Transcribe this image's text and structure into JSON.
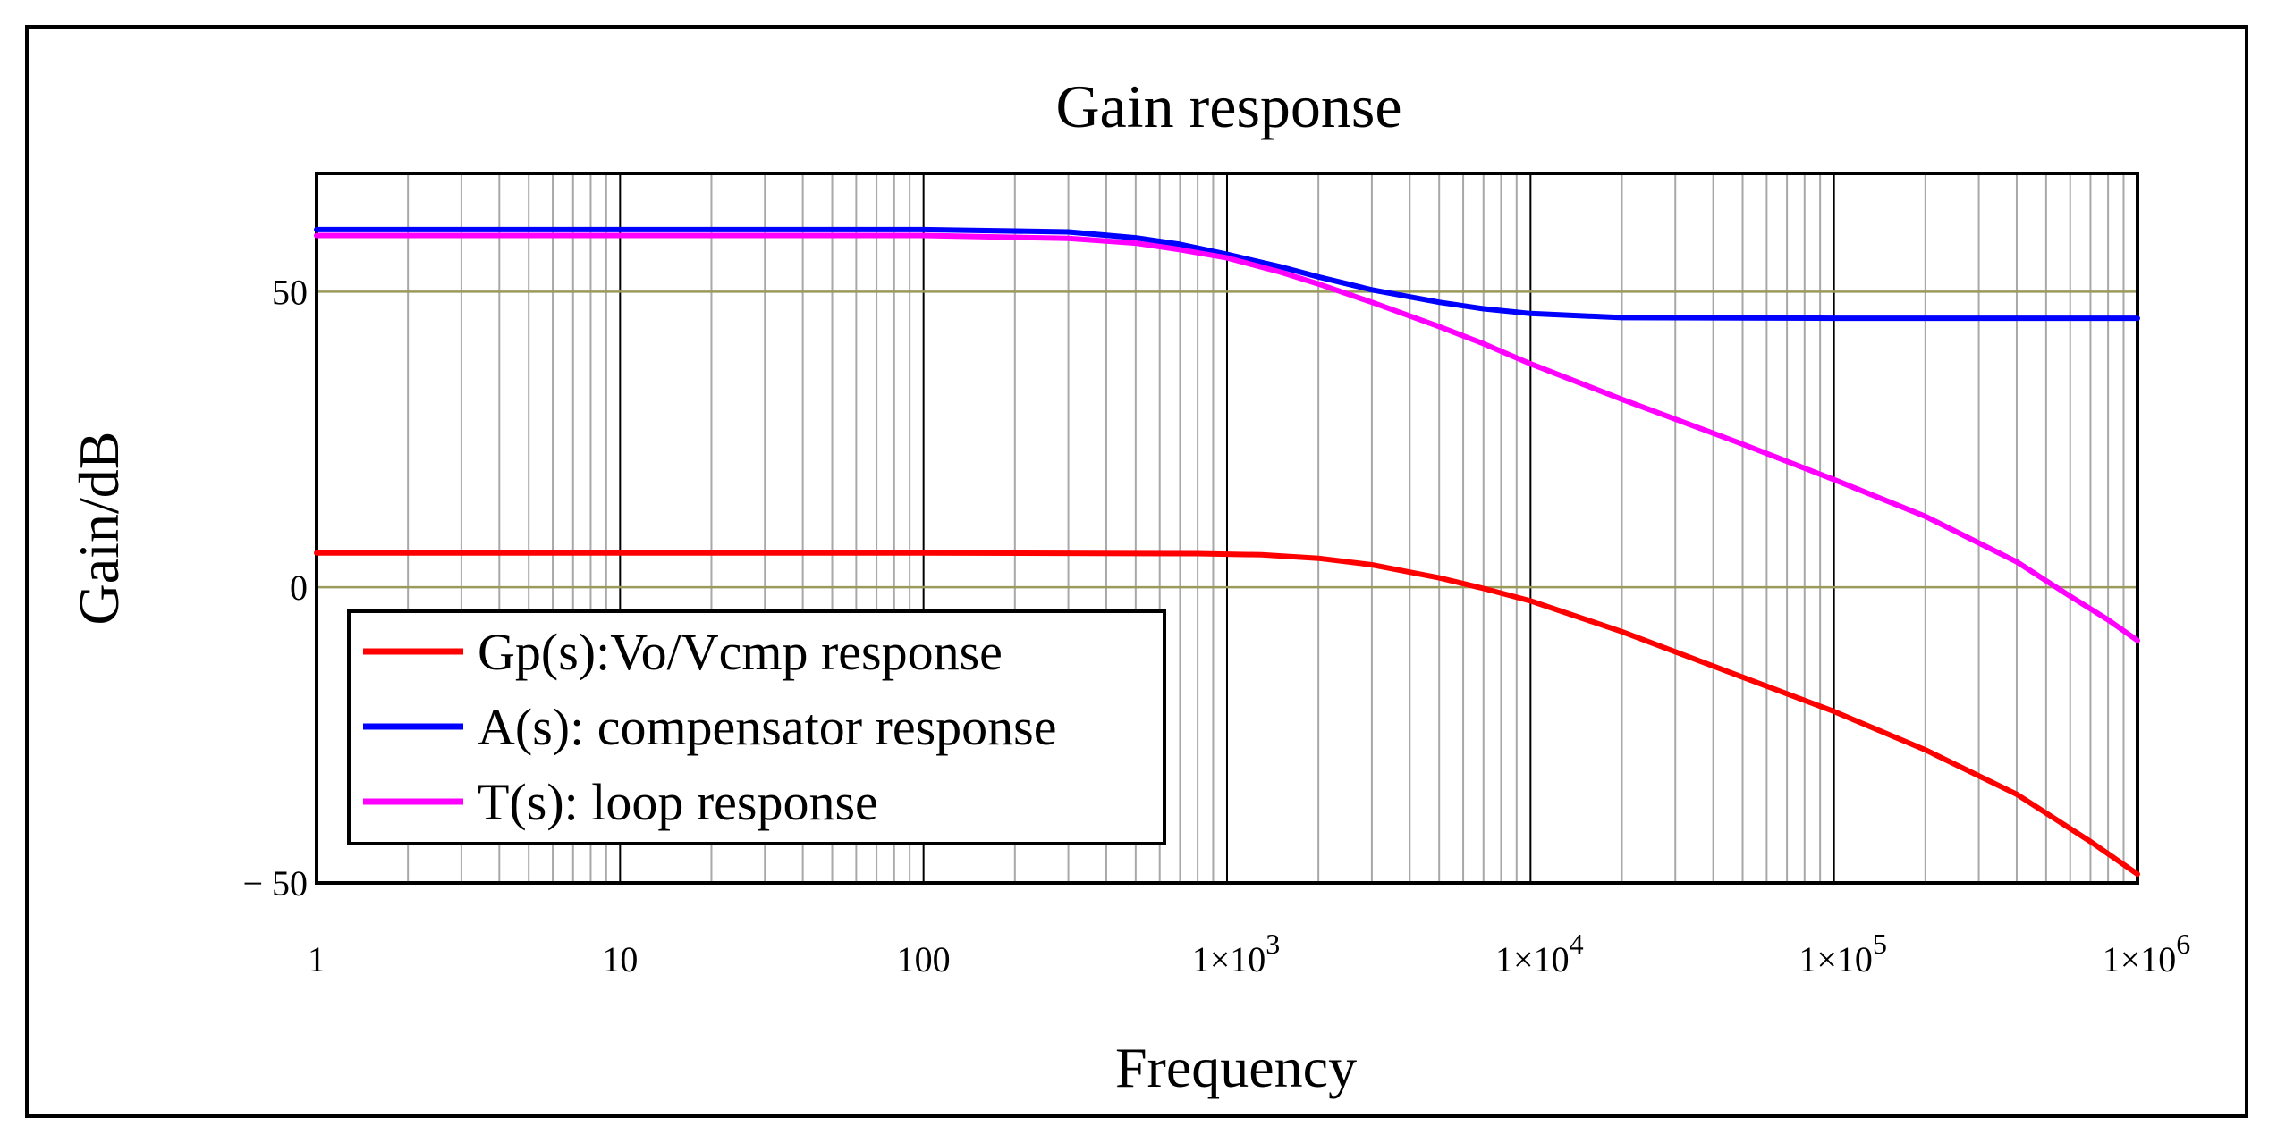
{
  "chart_data": {
    "type": "line",
    "title": "Gain response",
    "xlabel": "Frequency",
    "ylabel": "Gain/dB",
    "xscale": "log",
    "xlim": [
      1,
      1000000
    ],
    "ylim": [
      -50,
      70
    ],
    "grid": true,
    "legend_position": "bottom-left",
    "x_ticks": [
      {
        "value": 1,
        "mantissa": "1",
        "exp": ""
      },
      {
        "value": 10,
        "mantissa": "10",
        "exp": ""
      },
      {
        "value": 100,
        "mantissa": "100",
        "exp": ""
      },
      {
        "value": 1000,
        "mantissa": "1×10",
        "exp": "3"
      },
      {
        "value": 10000,
        "mantissa": "1×10",
        "exp": "4"
      },
      {
        "value": 100000,
        "mantissa": "1×10",
        "exp": "5"
      },
      {
        "value": 1000000,
        "mantissa": "1×10",
        "exp": "6"
      }
    ],
    "y_ticks": [
      {
        "value": 50,
        "label": "50"
      },
      {
        "value": 0,
        "label": "0"
      },
      {
        "value": -50,
        "label": "− 50"
      }
    ],
    "series": [
      {
        "name": "Gp(s):Vo/Vcmp response",
        "color": "#ff0000",
        "points": [
          [
            1,
            5.8
          ],
          [
            100,
            5.8
          ],
          [
            800,
            5.7
          ],
          [
            1300,
            5.5
          ],
          [
            2000,
            4.9
          ],
          [
            3000,
            3.8
          ],
          [
            5000,
            1.6
          ],
          [
            7000,
            -0.2
          ],
          [
            10000,
            -2.3
          ],
          [
            20000,
            -7.5
          ],
          [
            50000,
            -15.2
          ],
          [
            100000,
            -21
          ],
          [
            200000,
            -27.5
          ],
          [
            400000,
            -35
          ],
          [
            700000,
            -43
          ],
          [
            1000000,
            -48.5
          ]
        ]
      },
      {
        "name": "A(s): compensator response",
        "color": "#0000ff",
        "points": [
          [
            1,
            60.5
          ],
          [
            100,
            60.5
          ],
          [
            300,
            60.1
          ],
          [
            500,
            59.1
          ],
          [
            700,
            58
          ],
          [
            1000,
            56.3
          ],
          [
            1500,
            54.2
          ],
          [
            2000,
            52.5
          ],
          [
            3000,
            50.3
          ],
          [
            5000,
            48.2
          ],
          [
            7000,
            47.1
          ],
          [
            10000,
            46.3
          ],
          [
            20000,
            45.6
          ],
          [
            100000,
            45.5
          ],
          [
            1000000,
            45.5
          ]
        ]
      },
      {
        "name": "T(s): loop response",
        "color": "#ff00ff",
        "points": [
          [
            1,
            59.5
          ],
          [
            100,
            59.5
          ],
          [
            300,
            59
          ],
          [
            500,
            58.2
          ],
          [
            700,
            57.1
          ],
          [
            1000,
            55.7
          ],
          [
            1500,
            53.3
          ],
          [
            2000,
            51.3
          ],
          [
            3000,
            48.2
          ],
          [
            5000,
            44.1
          ],
          [
            7000,
            41.2
          ],
          [
            10000,
            37.8
          ],
          [
            20000,
            31.8
          ],
          [
            50000,
            24.2
          ],
          [
            100000,
            18.2
          ],
          [
            200000,
            12
          ],
          [
            400000,
            4.3
          ],
          [
            600000,
            -1.5
          ],
          [
            800000,
            -5.5
          ],
          [
            1000000,
            -9
          ]
        ]
      }
    ]
  }
}
